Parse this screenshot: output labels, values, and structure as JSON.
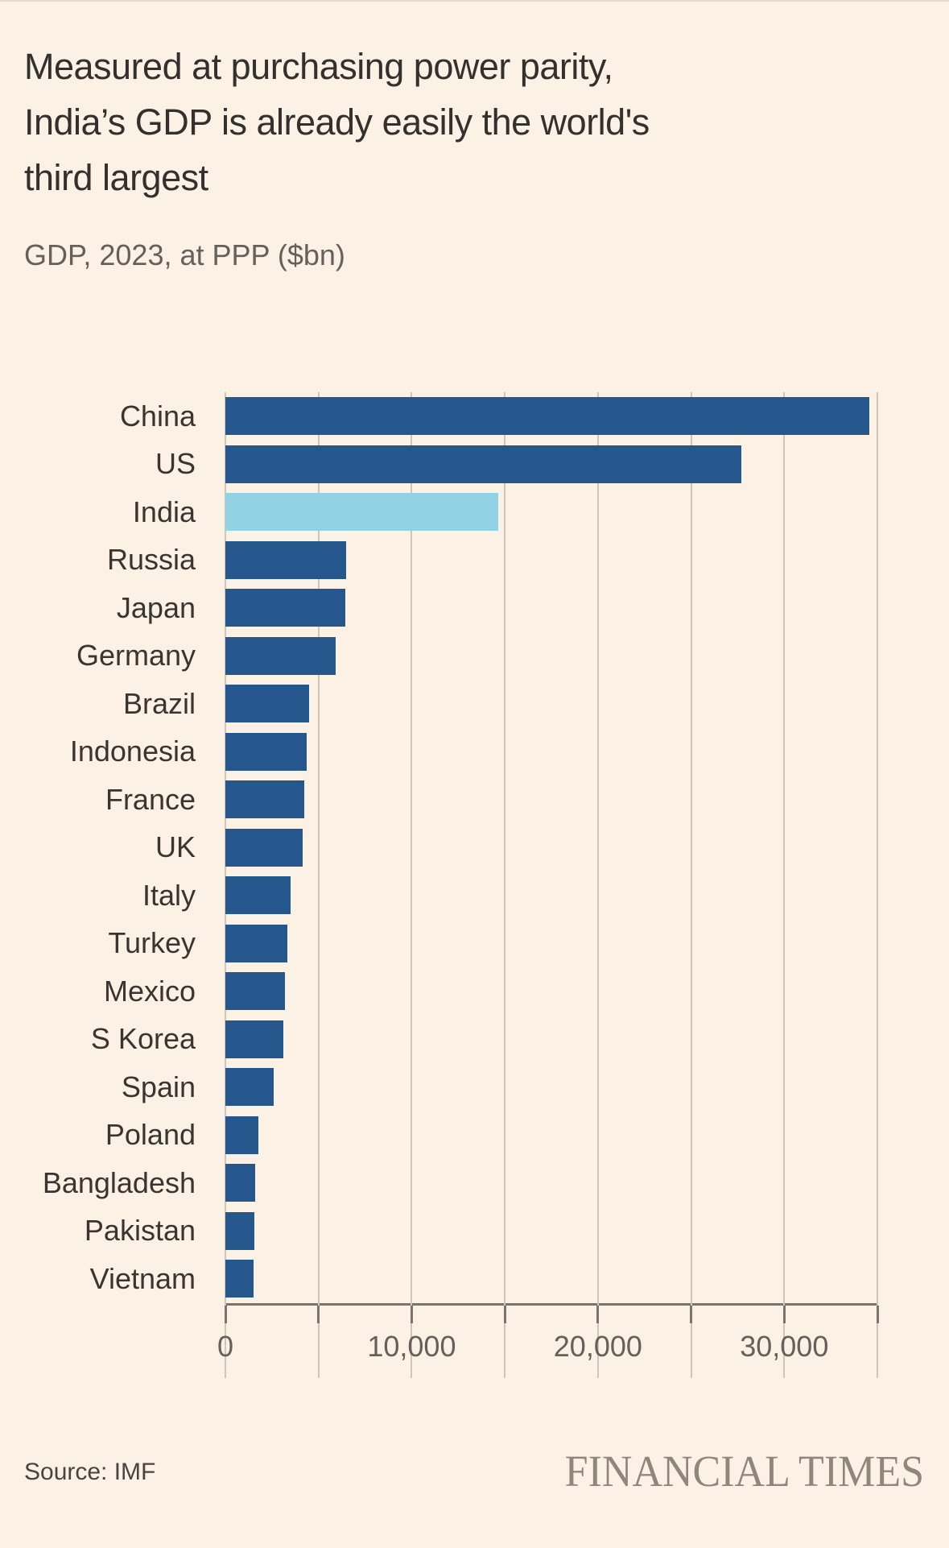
{
  "header": {
    "title_lines": [
      "Measured at purchasing power parity,",
      "India’s GDP is already easily the world's",
      "third largest"
    ]
  },
  "footer": {
    "brand": "FINANCIAL TIMES"
  },
  "colors": {
    "background": "#FCF1E5",
    "top_rule": "#E6D7C9",
    "bar_default": "#25568C",
    "bar_highlight": "#92D2E5",
    "title_text": "#33302E",
    "subtitle_text": "#66605B",
    "label_text": "#3A3530",
    "tick_text": "#66605B",
    "gridline": "#CFC5B9",
    "axis_line": "#7B746D",
    "source_text": "#494440",
    "brand_text": "#8F867D"
  },
  "chart_data": {
    "type": "bar",
    "orientation": "horizontal",
    "title": "Measured at purchasing power parity, India’s GDP is already easily the world's third largest",
    "subtitle": "GDP, 2023, at PPP ($bn)",
    "source": "Source: IMF",
    "categories": [
      "China",
      "US",
      "India",
      "Russia",
      "Japan",
      "Germany",
      "Brazil",
      "Indonesia",
      "France",
      "UK",
      "Italy",
      "Turkey",
      "Mexico",
      "S Korea",
      "Spain",
      "Poland",
      "Bangladesh",
      "Pakistan",
      "Vietnam"
    ],
    "values": [
      34550,
      27700,
      14650,
      6500,
      6420,
      5900,
      4500,
      4370,
      4240,
      4150,
      3500,
      3320,
      3190,
      3100,
      2580,
      1790,
      1620,
      1570,
      1530
    ],
    "highlight_category": "India",
    "xlabel": "",
    "ylabel": "",
    "xlim": [
      0,
      35000
    ],
    "x_ticks": [
      0,
      5000,
      10000,
      15000,
      20000,
      25000,
      30000,
      35000
    ],
    "x_tick_labels": [
      "0",
      "",
      "10,000",
      "",
      "20,000",
      "",
      "30,000",
      ""
    ],
    "grid": true,
    "legend": false
  }
}
